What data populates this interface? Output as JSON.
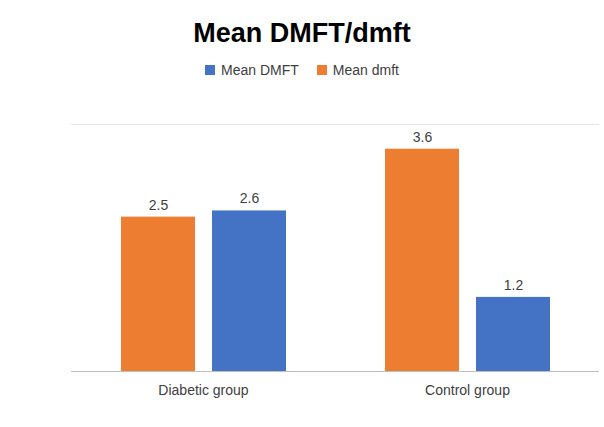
{
  "chart_data": {
    "type": "bar",
    "title": "Mean DMFT/dmft",
    "categories": [
      "Diabetic group",
      "Control group"
    ],
    "series": [
      {
        "name": "Mean DMFT",
        "color": "#4472c4",
        "values": [
          2.6,
          1.2
        ]
      },
      {
        "name": "Mean dmft",
        "color": "#ed7d31",
        "values": [
          2.5,
          3.6
        ]
      }
    ],
    "ylim": [
      0,
      4
    ],
    "yticks": [],
    "data_labels": true,
    "tick_labels": "x",
    "legend": "top"
  }
}
